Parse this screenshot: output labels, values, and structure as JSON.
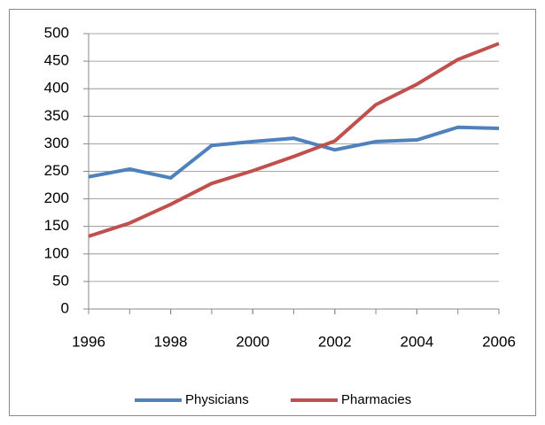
{
  "chart_data": {
    "type": "line",
    "x": [
      1996,
      1997,
      1998,
      1999,
      2000,
      2001,
      2002,
      2003,
      2004,
      2005,
      2006
    ],
    "xlim": [
      1996,
      2006
    ],
    "xticks": [
      1996,
      1998,
      2000,
      2002,
      2004,
      2006
    ],
    "ylim": [
      0,
      500
    ],
    "yticks": [
      0,
      50,
      100,
      150,
      200,
      250,
      300,
      350,
      400,
      450,
      500
    ],
    "grid": true,
    "legend": "bottom",
    "series": [
      {
        "name": "Physicians",
        "color": "#4f81bd",
        "values": [
          240,
          254,
          238,
          297,
          304,
          310,
          289,
          304,
          307,
          330,
          328
        ]
      },
      {
        "name": "Pharmacies",
        "color": "#c0504d",
        "values": [
          132,
          156,
          190,
          228,
          251,
          277,
          305,
          371,
          408,
          453,
          482
        ]
      }
    ]
  }
}
